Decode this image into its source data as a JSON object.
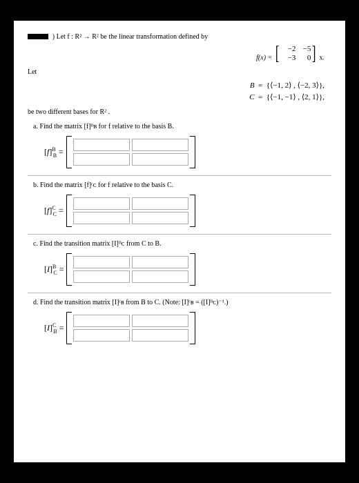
{
  "intro": ") Let f : R² → R² be the linear transformation defined by",
  "fx_label": "f(x) =",
  "fx_matrix": {
    "r1c1": "−2",
    "r1c2": "−5",
    "r2c1": "−3",
    "r2c2": "0"
  },
  "fx_suffix": "x.",
  "let_label": "Let",
  "basis_B_lhs": "B",
  "basis_B_rhs": "{⟨−1, 2⟩ , ⟨−2, 3⟩},",
  "basis_C_lhs": "C",
  "basis_C_rhs": "{⟨−1, −1⟩ , ⟨2, 1⟩},",
  "eq": "=",
  "bases_desc": "be two different bases for R² .",
  "parts": {
    "a": {
      "label": "a.  Find the matrix [f]ᴮʙ for f relative to the basis B.",
      "notation_html": "[<span class='ital'>f</span>]<span class='sup'>B</span><span class='sub'>B</span> ="
    },
    "b": {
      "label": "b.  Find the matrix [f]ᶜᴄ for f relative to the basis C.",
      "notation_html": "[<span class='ital'>f</span>]<span class='sup'>C</span><span class='sub'>C</span> ="
    },
    "c": {
      "label": "c.  Find the transition matrix [I]ᴮᴄ from C to B.",
      "notation_html": "[<span class='ital'>I</span>]<span class='sup'>B</span><span class='sub'>C</span> ="
    },
    "d": {
      "label": "d.  Find the transition matrix [I]ᶜʙ from B to C. (Note: [I]ᶜʙ = ([I]ᴮᴄ)⁻¹.)",
      "notation_html": "[<span class='ital'>I</span>]<span class='sup'>C</span><span class='sub'>B</span> ="
    }
  },
  "colors": {
    "page_bg": "#ffffff",
    "outer_bg": "#000000",
    "input_border": "#aaaaaa",
    "divider": "#bbbbbb"
  }
}
